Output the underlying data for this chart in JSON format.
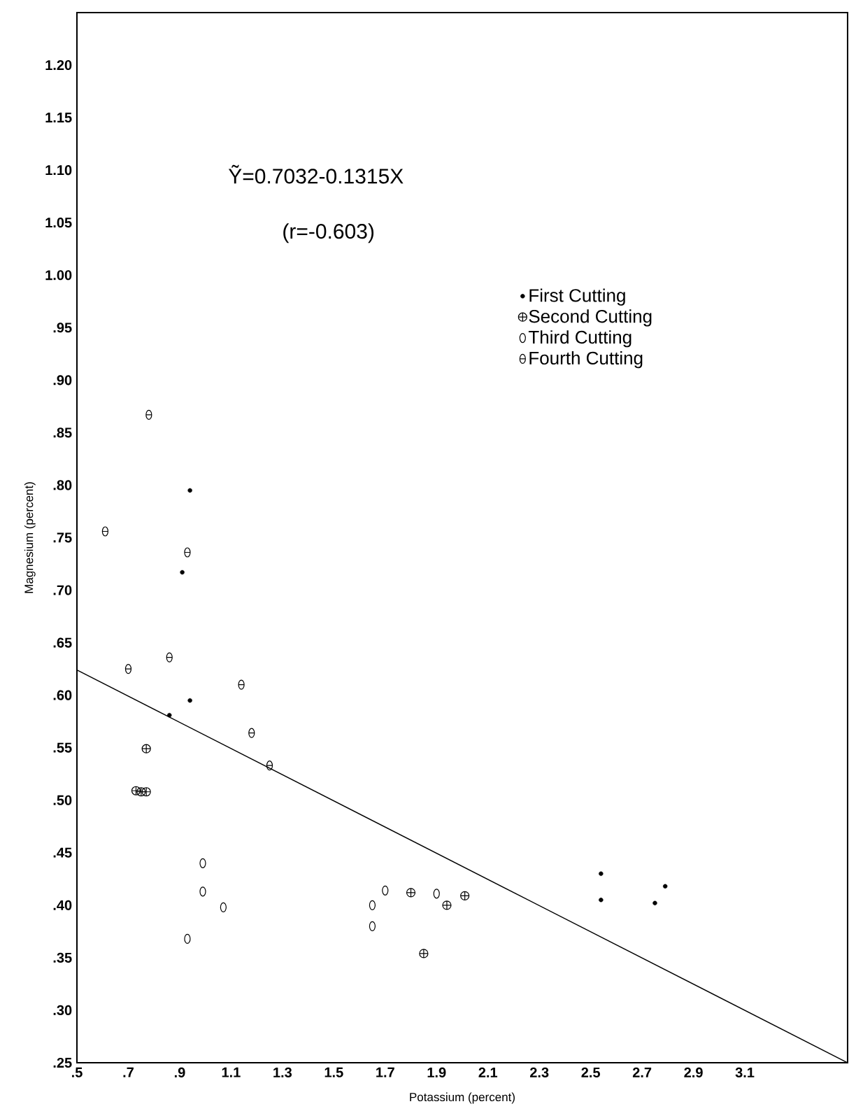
{
  "chart_data": {
    "type": "scatter",
    "xlabel": "Potassium (percent)",
    "ylabel": "Magnesium (percent)",
    "annotations": [
      "Ỹ=0.7032-0.1315X",
      "(r=-0.603)"
    ],
    "xlim": [
      0.5,
      3.5
    ],
    "ylim": [
      0.25,
      1.25
    ],
    "xticks": [
      {
        "value": 0.5,
        "label": ".5"
      },
      {
        "value": 0.7,
        "label": ".7"
      },
      {
        "value": 0.9,
        "label": ".9"
      },
      1.1,
      1.3,
      1.5,
      1.7,
      1.9,
      2.1,
      2.3,
      2.5,
      2.7,
      2.9,
      3.1
    ],
    "yticks": [
      {
        "value": 0.25,
        "label": ".25"
      },
      {
        "value": 0.3,
        "label": ".30"
      },
      {
        "value": 0.35,
        "label": ".35"
      },
      {
        "value": 0.4,
        "label": ".40"
      },
      {
        "value": 0.45,
        "label": ".45"
      },
      {
        "value": 0.5,
        "label": ".50"
      },
      {
        "value": 0.55,
        "label": ".55"
      },
      {
        "value": 0.6,
        "label": ".60"
      },
      {
        "value": 0.65,
        "label": ".65"
      },
      {
        "value": 0.7,
        "label": ".70"
      },
      {
        "value": 0.75,
        "label": ".75"
      },
      {
        "value": 0.8,
        "label": ".80"
      },
      {
        "value": 0.85,
        "label": ".85"
      },
      {
        "value": 0.9,
        "label": ".90"
      },
      {
        "value": 0.95,
        "label": ".95"
      },
      {
        "value": 1.0,
        "label": "1.00"
      },
      {
        "value": 1.05,
        "label": "1.05"
      },
      {
        "value": 1.1,
        "label": "1.10"
      },
      1.15,
      {
        "value": 1.2,
        "label": "1.20"
      }
    ],
    "legend": "top right",
    "grid": false,
    "series": [
      {
        "name": "First Cutting",
        "color": "#000000",
        "marker": "circle",
        "x": [
          0.94,
          0.91,
          0.94,
          0.86,
          2.54,
          2.54,
          2.79,
          2.75
        ],
        "values": [
          0.795,
          0.717,
          0.595,
          0.581,
          0.43,
          0.405,
          0.418,
          0.402
        ]
      },
      {
        "name": "Second Cutting",
        "color": "#000000",
        "marker": "cross",
        "x": [
          0.77,
          0.73,
          0.75,
          0.77,
          1.8,
          1.94,
          2.01,
          1.85
        ],
        "values": [
          0.549,
          0.509,
          0.508,
          0.508,
          0.412,
          0.4,
          0.409,
          0.354
        ]
      },
      {
        "name": "Third Cutting",
        "color": "#000000",
        "marker": "circle",
        "x": [
          0.99,
          0.99,
          1.07,
          0.93,
          1.65,
          1.65,
          1.7,
          1.9
        ],
        "values": [
          0.44,
          0.413,
          0.398,
          0.368,
          0.4,
          0.38,
          0.414,
          0.411
        ]
      },
      {
        "name": "Fourth Cutting",
        "color": "#000000",
        "marker": "circle",
        "x": [
          0.78,
          0.61,
          0.93,
          0.7,
          0.86,
          1.14,
          1.18,
          1.25
        ],
        "values": [
          0.867,
          0.756,
          0.736,
          0.625,
          0.636,
          0.61,
          0.564,
          0.533
        ]
      },
      {
        "type": "line",
        "color": "#000000",
        "line_style": "solid",
        "x": [
          0.5,
          3.5
        ],
        "values": [
          0.624,
          0.25
        ]
      }
    ]
  }
}
